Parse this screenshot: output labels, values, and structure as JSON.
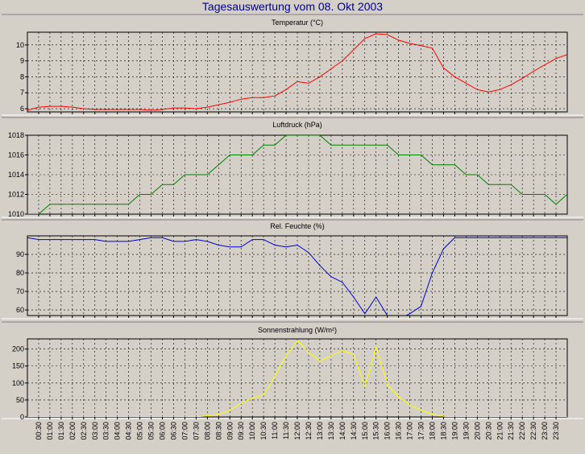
{
  "window": {
    "title": "Tagesauswertung vom 08. Okt 2003"
  },
  "x_labels": [
    "00:30",
    "01:00",
    "01:30",
    "02:00",
    "02:30",
    "03:00",
    "03:30",
    "04:00",
    "04:30",
    "05:00",
    "05:30",
    "06:00",
    "06:30",
    "07:00",
    "07:30",
    "08:00",
    "08:30",
    "09:00",
    "09:30",
    "10:00",
    "10:30",
    "11:00",
    "11:30",
    "12:00",
    "12:30",
    "13:00",
    "13:30",
    "14:00",
    "14:30",
    "15:00",
    "15:30",
    "16:00",
    "16:30",
    "17:00",
    "17:30",
    "18:00",
    "18:30",
    "19:00",
    "19:30",
    "20:00",
    "20:30",
    "21:00",
    "21:30",
    "22:00",
    "22:30",
    "23:00",
    "23:30"
  ],
  "chart_data": [
    {
      "type": "line",
      "title": "Temperatur (°C)",
      "color": "#ff0000",
      "ylim": [
        5.8,
        10.8
      ],
      "yticks": [
        6,
        7,
        8,
        9,
        10
      ],
      "grid": true,
      "x": [
        "00:00",
        "00:30",
        "01:00",
        "01:30",
        "02:00",
        "02:30",
        "03:00",
        "03:30",
        "04:00",
        "04:30",
        "05:00",
        "05:30",
        "06:00",
        "06:30",
        "07:00",
        "07:30",
        "08:00",
        "08:30",
        "09:00",
        "09:30",
        "10:00",
        "10:30",
        "11:00",
        "11:30",
        "12:00",
        "12:30",
        "13:00",
        "13:30",
        "14:00",
        "14:30",
        "15:00",
        "15:30",
        "16:00",
        "16:30",
        "17:00",
        "17:30",
        "18:00",
        "18:30",
        "19:00",
        "19:30",
        "20:00",
        "20:30",
        "21:00",
        "21:30",
        "22:00",
        "22:30",
        "23:00",
        "23:30",
        "24:00"
      ],
      "values": [
        5.9,
        6.1,
        6.15,
        6.15,
        6.1,
        6.0,
        5.95,
        5.95,
        5.95,
        5.95,
        5.95,
        5.9,
        5.95,
        6.05,
        6.05,
        6.0,
        6.1,
        6.25,
        6.4,
        6.6,
        6.7,
        6.7,
        6.8,
        7.2,
        7.7,
        7.6,
        8.0,
        8.5,
        9.0,
        9.7,
        10.4,
        10.7,
        10.65,
        10.3,
        10.1,
        9.95,
        9.8,
        8.55,
        8.0,
        7.6,
        7.2,
        7.05,
        7.2,
        7.5,
        7.9,
        8.35,
        8.75,
        9.15,
        9.4
      ]
    },
    {
      "type": "line",
      "title": "Luftdruck (hPa)",
      "color": "#008000",
      "ylim": [
        1010,
        1018
      ],
      "yticks": [
        1010,
        1012,
        1014,
        1016,
        1018
      ],
      "grid": true,
      "x": [
        "00:00",
        "00:30",
        "01:00",
        "01:30",
        "02:00",
        "02:30",
        "03:00",
        "03:30",
        "04:00",
        "04:30",
        "05:00",
        "05:30",
        "06:00",
        "06:30",
        "07:00",
        "07:30",
        "08:00",
        "08:30",
        "09:00",
        "09:30",
        "10:00",
        "10:30",
        "11:00",
        "11:30",
        "12:00",
        "12:30",
        "13:00",
        "13:30",
        "14:00",
        "14:30",
        "15:00",
        "15:30",
        "16:00",
        "16:30",
        "17:00",
        "17:30",
        "18:00",
        "18:30",
        "19:00",
        "19:30",
        "20:00",
        "20:30",
        "21:00",
        "21:30",
        "22:00",
        "22:30",
        "23:00",
        "23:30",
        "24:00"
      ],
      "values": [
        1010,
        1010,
        1011,
        1011,
        1011,
        1011,
        1011,
        1011,
        1011,
        1011,
        1012,
        1012,
        1013,
        1013,
        1014,
        1014,
        1014,
        1015,
        1016,
        1016,
        1016,
        1017,
        1017,
        1018,
        1018,
        1018,
        1018,
        1017,
        1017,
        1017,
        1017,
        1017,
        1017,
        1016,
        1016,
        1016,
        1015,
        1015,
        1015,
        1014,
        1014,
        1013,
        1013,
        1013,
        1012,
        1012,
        1012,
        1011,
        1012
      ]
    },
    {
      "type": "line",
      "title": "Rel. Feuchte (%)",
      "color": "#0000cc",
      "ylim": [
        57,
        100
      ],
      "yticks": [
        60,
        70,
        80,
        90
      ],
      "grid": true,
      "x": [
        "00:00",
        "00:30",
        "01:00",
        "01:30",
        "02:00",
        "02:30",
        "03:00",
        "03:30",
        "04:00",
        "04:30",
        "05:00",
        "05:30",
        "06:00",
        "06:30",
        "07:00",
        "07:30",
        "08:00",
        "08:30",
        "09:00",
        "09:30",
        "10:00",
        "10:30",
        "11:00",
        "11:30",
        "12:00",
        "12:30",
        "13:00",
        "13:30",
        "14:00",
        "14:30",
        "15:00",
        "15:30",
        "16:00",
        "16:30",
        "17:00",
        "17:30",
        "18:00",
        "18:30",
        "19:00",
        "19:30",
        "20:00",
        "20:30",
        "21:00",
        "21:30",
        "22:00",
        "22:30",
        "23:00",
        "23:30",
        "24:00"
      ],
      "values": [
        99,
        98,
        98,
        98,
        98,
        98,
        98,
        97,
        97,
        97,
        98,
        99,
        99,
        97,
        97,
        98,
        97,
        95,
        94,
        94,
        98,
        98,
        95,
        94,
        95,
        91,
        84,
        78,
        75,
        67,
        58,
        67,
        57,
        55,
        58,
        62,
        80,
        93,
        99,
        99,
        99,
        99,
        99,
        99,
        99,
        99,
        99,
        99,
        99
      ]
    },
    {
      "type": "line",
      "title": "Sonnenstrahlung (W/m²)",
      "color": "#ffff00",
      "ylim": [
        0,
        230
      ],
      "yticks": [
        0,
        50,
        100,
        150,
        200
      ],
      "grid": true,
      "x": [
        "00:00",
        "00:30",
        "01:00",
        "01:30",
        "02:00",
        "02:30",
        "03:00",
        "03:30",
        "04:00",
        "04:30",
        "05:00",
        "05:30",
        "06:00",
        "06:30",
        "07:00",
        "07:30",
        "08:00",
        "08:30",
        "09:00",
        "09:30",
        "10:00",
        "10:30",
        "11:00",
        "11:30",
        "12:00",
        "12:30",
        "13:00",
        "13:30",
        "14:00",
        "14:30",
        "15:00",
        "15:30",
        "16:00",
        "16:30",
        "17:00",
        "17:30",
        "18:00",
        "18:30",
        "19:00",
        "19:30",
        "20:00",
        "20:30",
        "21:00",
        "21:30",
        "22:00",
        "22:30",
        "23:00",
        "23:30",
        "24:00"
      ],
      "values": [
        0,
        0,
        0,
        0,
        0,
        0,
        0,
        0,
        0,
        0,
        0,
        0,
        0,
        0,
        0,
        0,
        3,
        8,
        20,
        40,
        55,
        65,
        120,
        180,
        225,
        190,
        165,
        180,
        195,
        185,
        90,
        205,
        95,
        60,
        35,
        20,
        8,
        2,
        0,
        0,
        0,
        0,
        0,
        0,
        0,
        0,
        0,
        0,
        0
      ]
    }
  ]
}
